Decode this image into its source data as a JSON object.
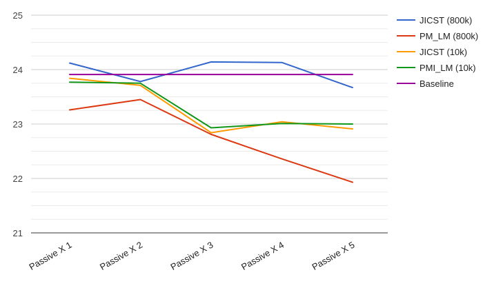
{
  "chart_data": {
    "type": "line",
    "title": "",
    "xlabel": "",
    "ylabel": "",
    "categories": [
      "Passive X 1",
      "Passive X 2",
      "Passive X 3",
      "Passive X 4",
      "Passive X 5"
    ],
    "ylim": [
      21,
      25
    ],
    "yticks": [
      21,
      22,
      23,
      24,
      25
    ],
    "grid": "horizontal, major and minor",
    "legend_position": "right",
    "series": [
      {
        "name": "JICST (800k)",
        "color": "#3366cc",
        "values": [
          24.12,
          23.78,
          24.14,
          24.13,
          23.67
        ]
      },
      {
        "name": "PM_LM (800k)",
        "color": "#dc3912",
        "values": [
          23.26,
          23.45,
          22.81,
          22.36,
          21.93
        ]
      },
      {
        "name": "JICST (10k)",
        "color": "#ff9900",
        "values": [
          23.84,
          23.71,
          22.84,
          23.04,
          22.91
        ]
      },
      {
        "name": "PMI_LM (10k)",
        "color": "#109618",
        "values": [
          23.77,
          23.75,
          22.93,
          23.01,
          23.0
        ]
      },
      {
        "name": "Baseline",
        "color": "#990099",
        "values": [
          23.91,
          23.91,
          23.91,
          23.91,
          23.91
        ]
      }
    ]
  }
}
